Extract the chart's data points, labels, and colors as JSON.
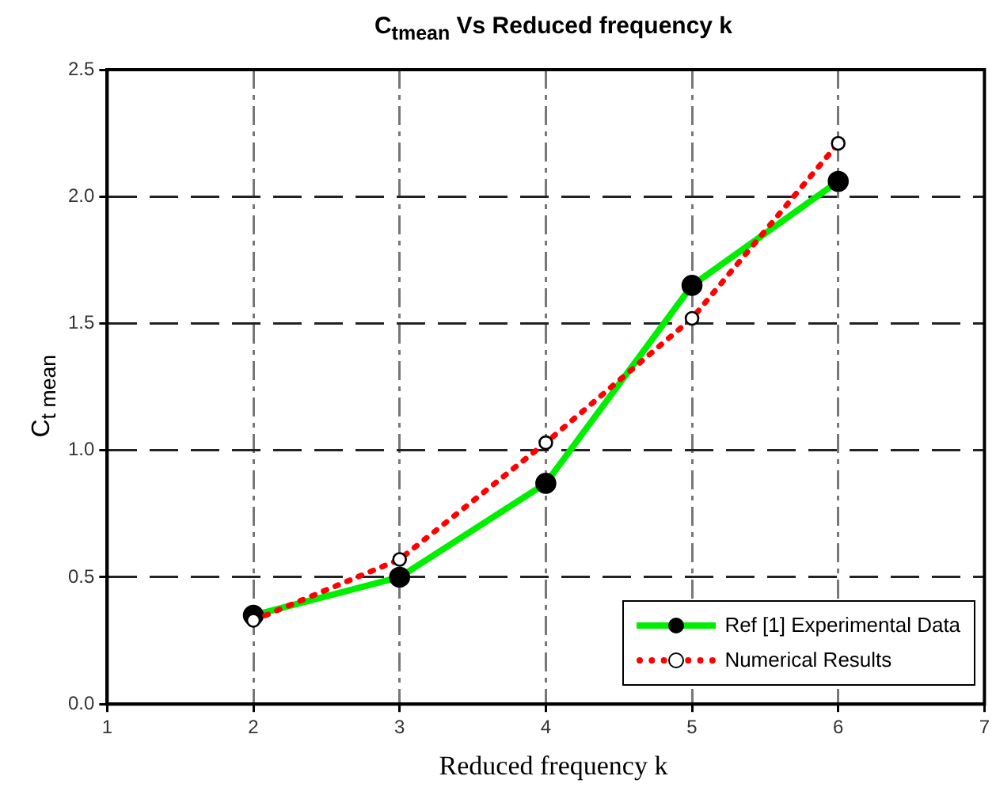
{
  "chart_data": {
    "type": "line",
    "title": "C$_{tmean}$ Vs Reduced frequency k",
    "xlabel": "Reduced frequency k",
    "ylabel": "C$_{t mean}$",
    "x": [
      2,
      3,
      4,
      5,
      6
    ],
    "series": [
      {
        "name": "Ref [1] Experimental Data",
        "color": "#00ee00",
        "values": [
          0.35,
          0.5,
          0.87,
          1.65,
          2.06
        ],
        "marker": "circle",
        "line_style": "solid"
      },
      {
        "name": "Numerical Results",
        "color": "#ff0000",
        "values": [
          0.33,
          0.57,
          1.03,
          1.52,
          2.21
        ],
        "marker": "circle",
        "line_style": "dotted"
      }
    ],
    "xlim": [
      1,
      7
    ],
    "xticks": [
      1,
      2,
      3,
      4,
      5,
      6,
      7
    ],
    "ylim": [
      0,
      2.5
    ],
    "yticks": [
      {
        "value": 0,
        "label": "0.0"
      },
      {
        "value": 0.5,
        "label": "0.5"
      },
      {
        "value": 1,
        "label": "1.0"
      },
      {
        "value": 1.5,
        "label": "1.5"
      },
      {
        "value": 2,
        "label": "2.0"
      },
      {
        "value": 2.5,
        "label": "2.5"
      }
    ],
    "grid": true,
    "legend": "bottom right"
  }
}
